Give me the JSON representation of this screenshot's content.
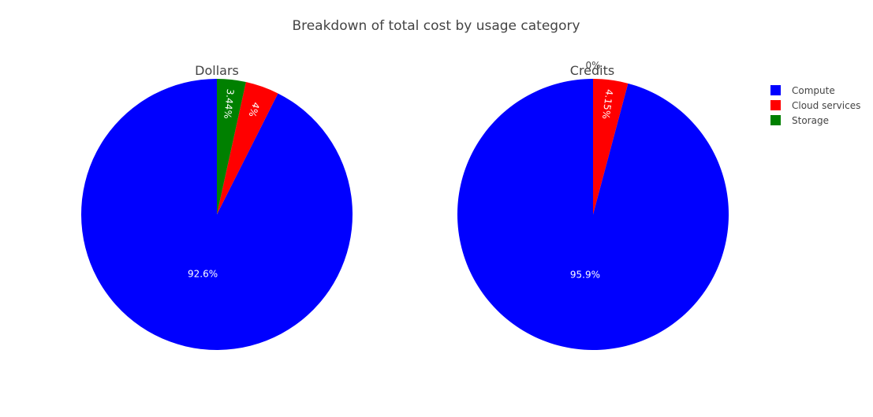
{
  "chart_data": {
    "type": "pie",
    "title": "Breakdown of total cost by usage category",
    "categories": [
      "Compute",
      "Cloud services",
      "Storage"
    ],
    "colors": {
      "Compute": "#0000ff",
      "Cloud services": "#ff0000",
      "Storage": "#008000"
    },
    "legend": {
      "position": "top-right",
      "items": [
        "Compute",
        "Cloud services",
        "Storage"
      ]
    },
    "pies": [
      {
        "title": "Dollars",
        "slices": [
          {
            "label": "Compute",
            "value": 92.6,
            "text": "92.6%"
          },
          {
            "label": "Cloud services",
            "value": 4.0,
            "text": "4%"
          },
          {
            "label": "Storage",
            "value": 3.44,
            "text": "3.44%"
          }
        ]
      },
      {
        "title": "Credits",
        "slices": [
          {
            "label": "Compute",
            "value": 95.85,
            "text": "95.9%"
          },
          {
            "label": "Cloud services",
            "value": 4.15,
            "text": "4.15%"
          },
          {
            "label": "Storage",
            "value": 0,
            "text": "0%"
          }
        ]
      }
    ]
  }
}
